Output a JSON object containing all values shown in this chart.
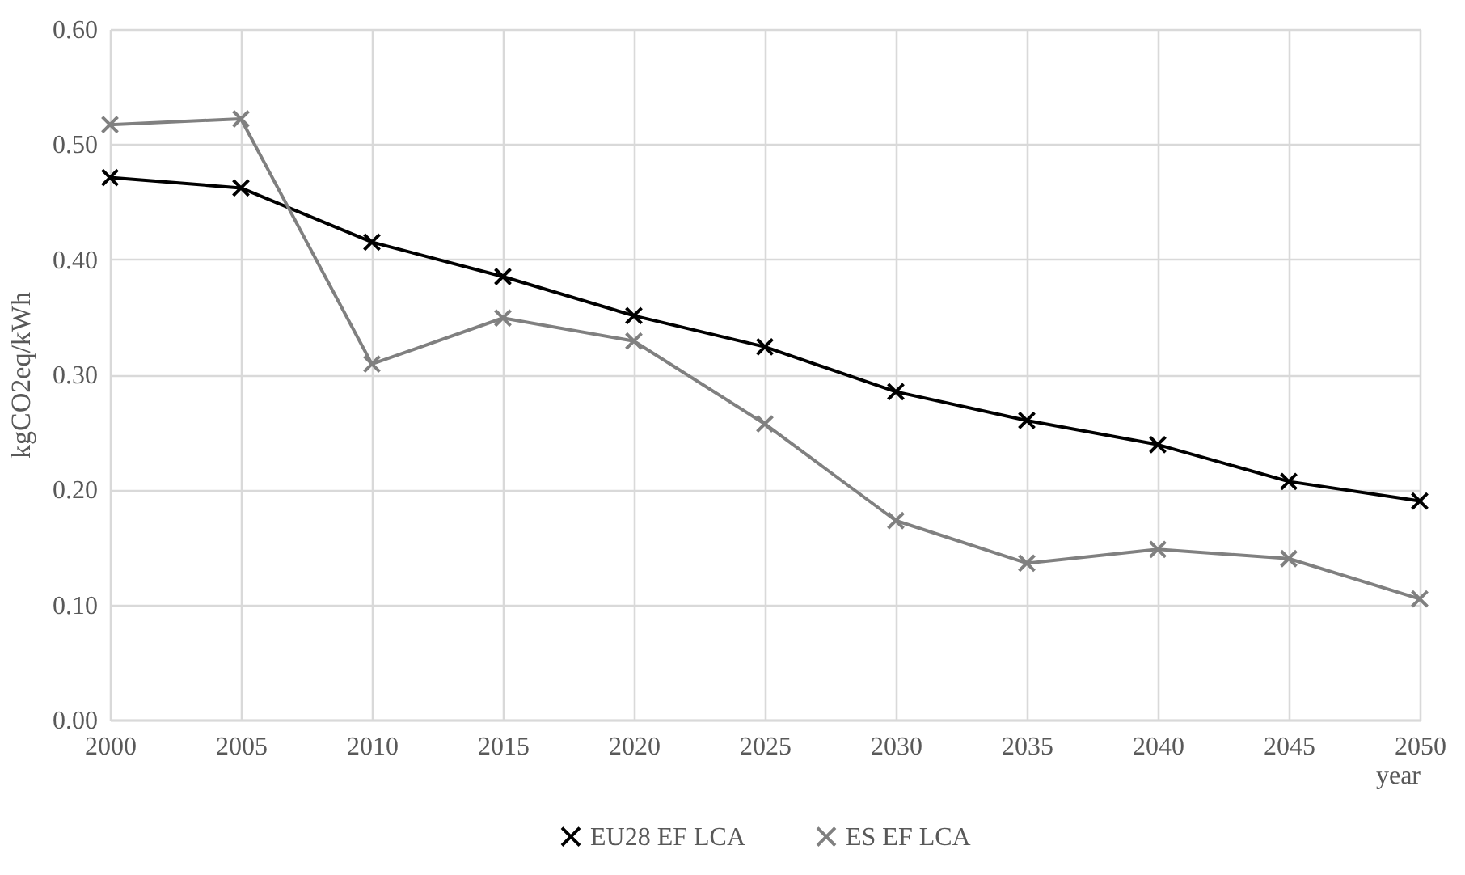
{
  "chart_data": {
    "type": "line",
    "xlabel": "year",
    "ylabel": "kgCO2eq/kWh",
    "x": [
      2000,
      2005,
      2010,
      2015,
      2020,
      2025,
      2030,
      2035,
      2040,
      2045,
      2050
    ],
    "series": [
      {
        "name": "EU28 EF LCA",
        "color": "#000000",
        "values": [
          0.471,
          0.462,
          0.415,
          0.385,
          0.351,
          0.324,
          0.285,
          0.26,
          0.239,
          0.207,
          0.19
        ]
      },
      {
        "name": "ES EF LCA",
        "color": "#808080",
        "values": [
          0.517,
          0.522,
          0.309,
          0.349,
          0.329,
          0.257,
          0.173,
          0.136,
          0.148,
          0.14,
          0.105
        ]
      }
    ],
    "xlim": [
      2000,
      2050
    ],
    "xticks": [
      2000,
      2005,
      2010,
      2015,
      2020,
      2025,
      2030,
      2035,
      2040,
      2045,
      2050
    ],
    "ylim": [
      0,
      0.6
    ],
    "yticks": [
      {
        "value": 0,
        "label": "0.00"
      },
      {
        "value": 0.1,
        "label": "0.10"
      },
      {
        "value": 0.2,
        "label": "0.20"
      },
      {
        "value": 0.3,
        "label": "0.30"
      },
      {
        "value": 0.4,
        "label": "0.40"
      },
      {
        "value": 0.5,
        "label": "0.50"
      },
      {
        "value": 0.6,
        "label": "0.60"
      }
    ],
    "grid": true,
    "legend": "bottom",
    "marker": "cross",
    "line_style": "solid"
  }
}
